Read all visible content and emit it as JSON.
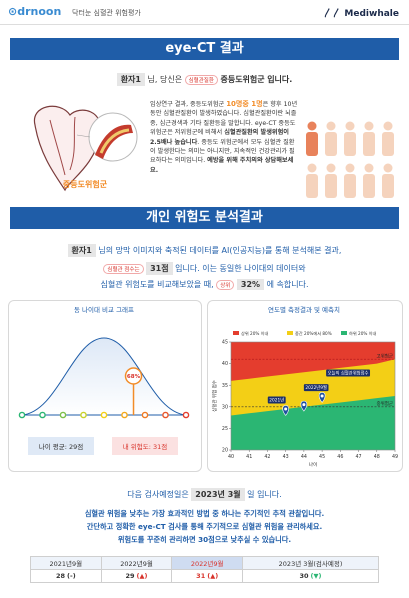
{
  "header": {
    "logo": "drnoon",
    "subtitle": "닥터눈 심혈관 위험평가",
    "brand": "Mediwhale"
  },
  "section1": {
    "title": "eye-CT 결과",
    "patient": "환자1",
    "line_mid": "님, 당신은",
    "badge": "심혈관질환",
    "group": "중등도위험군",
    "line_end": "입니다.",
    "image_label": "중등도위험군",
    "paragraph": [
      "임상연구 결과, 중등도위험군 ",
      "10명중 1명",
      "은 향후 10년동안 심혈관질환이 발생하였습니다. 심혈관질환이란 뇌졸중, 심근경색과 기타 질환등을 말합니다. eye-CT 중등도 위험군은 저위험군에 비해서 ",
      "심혈관질환의 발생위험이 2.5배나 높습니다",
      ". 중등도 위험군에서 모두 심혈관 질환이 발생한다는 의미는 아니지만, 지속적인 건강관리가 필요하다는 의미입니다. ",
      "예방을 위해 주치의와 상담해보세요."
    ]
  },
  "section2": {
    "title": "개인 위험도 분석결과",
    "line1": [
      "환자1",
      "님의 망막 이미지와 축적된 데이터를 AI(인공지능)를 통해 분석해본 결과,"
    ],
    "line2": [
      "심혈관 점수는",
      "31점",
      "입니다. 이는 동일한 나이대의 데이터와"
    ],
    "line3": [
      "심혈관 위험도를 비교해보았을 때,",
      "상위",
      "32%",
      "에 속합니다."
    ]
  },
  "comparison_chart": {
    "title": "동 나이대 비교 그래프",
    "marker": {
      "value": 68,
      "label": "68%"
    },
    "average_label": "나이 평균: 29점",
    "mine_label": "내 위험도: 31점"
  },
  "chart_data": {
    "type": "scatter",
    "title": "연도별 측정결과 및 예측치",
    "x_label": "나이",
    "y_label": "심혈관 위험 점수",
    "xlim": [
      40,
      49
    ],
    "xticks": [
      40,
      41,
      42,
      43,
      44,
      45,
      46,
      47,
      48,
      49
    ],
    "ylim": [
      20,
      45
    ],
    "yticks": [
      20,
      25,
      30,
      35,
      40,
      45
    ],
    "x": [
      40,
      41,
      42,
      43,
      44,
      45,
      46,
      47,
      48,
      49
    ],
    "series": [
      {
        "name": "상위 20% 이내",
        "color": "#e43d2e"
      },
      {
        "name": "중간 20%에서 80%",
        "color": "#f3cf16",
        "values": [
          36,
          36.5,
          37,
          37.5,
          38,
          38.5,
          39,
          39.5,
          40,
          41
        ]
      },
      {
        "name": "하위 20% 이내",
        "color": "#2bb673",
        "values": [
          28,
          28.5,
          29,
          29.5,
          30,
          30.5,
          31,
          31.5,
          32,
          32.5
        ]
      }
    ],
    "points": {
      "color": "#1e4fa0",
      "x": [
        43,
        44,
        45
      ],
      "values": [
        28,
        29,
        31
      ],
      "labels": [
        "2021년",
        "2022년9월",
        "오늘의 심혈관위험점수"
      ]
    },
    "reference_lines": [
      {
        "label": "고위험군",
        "value": 41
      },
      {
        "label": "중위험군",
        "value": 30
      }
    ]
  },
  "footer": {
    "next": [
      "다음 검사예정일은",
      "2023년 3월",
      "일 입니다."
    ],
    "lines": [
      "심혈관 위험을 낮추는 가장 효과적인 방법 중 하나는 주기적인 추적 관찰입니다.",
      "간단하고 정확한 eye-CT 검사를 통해 주기적으로 심혈관 위험을 관리하세요.",
      "위험도를 꾸준히 관리하면 30점으로 낮추실 수 있습니다."
    ],
    "table": {
      "headers": [
        "2021년9월",
        "2022년9월",
        "2022년9월",
        "2023년 3월(검사예정)"
      ],
      "scores": [
        "28",
        "29",
        "31",
        "30"
      ],
      "trends": [
        "(-)",
        "(▲)",
        "(▲)",
        "(▼)"
      ]
    }
  }
}
